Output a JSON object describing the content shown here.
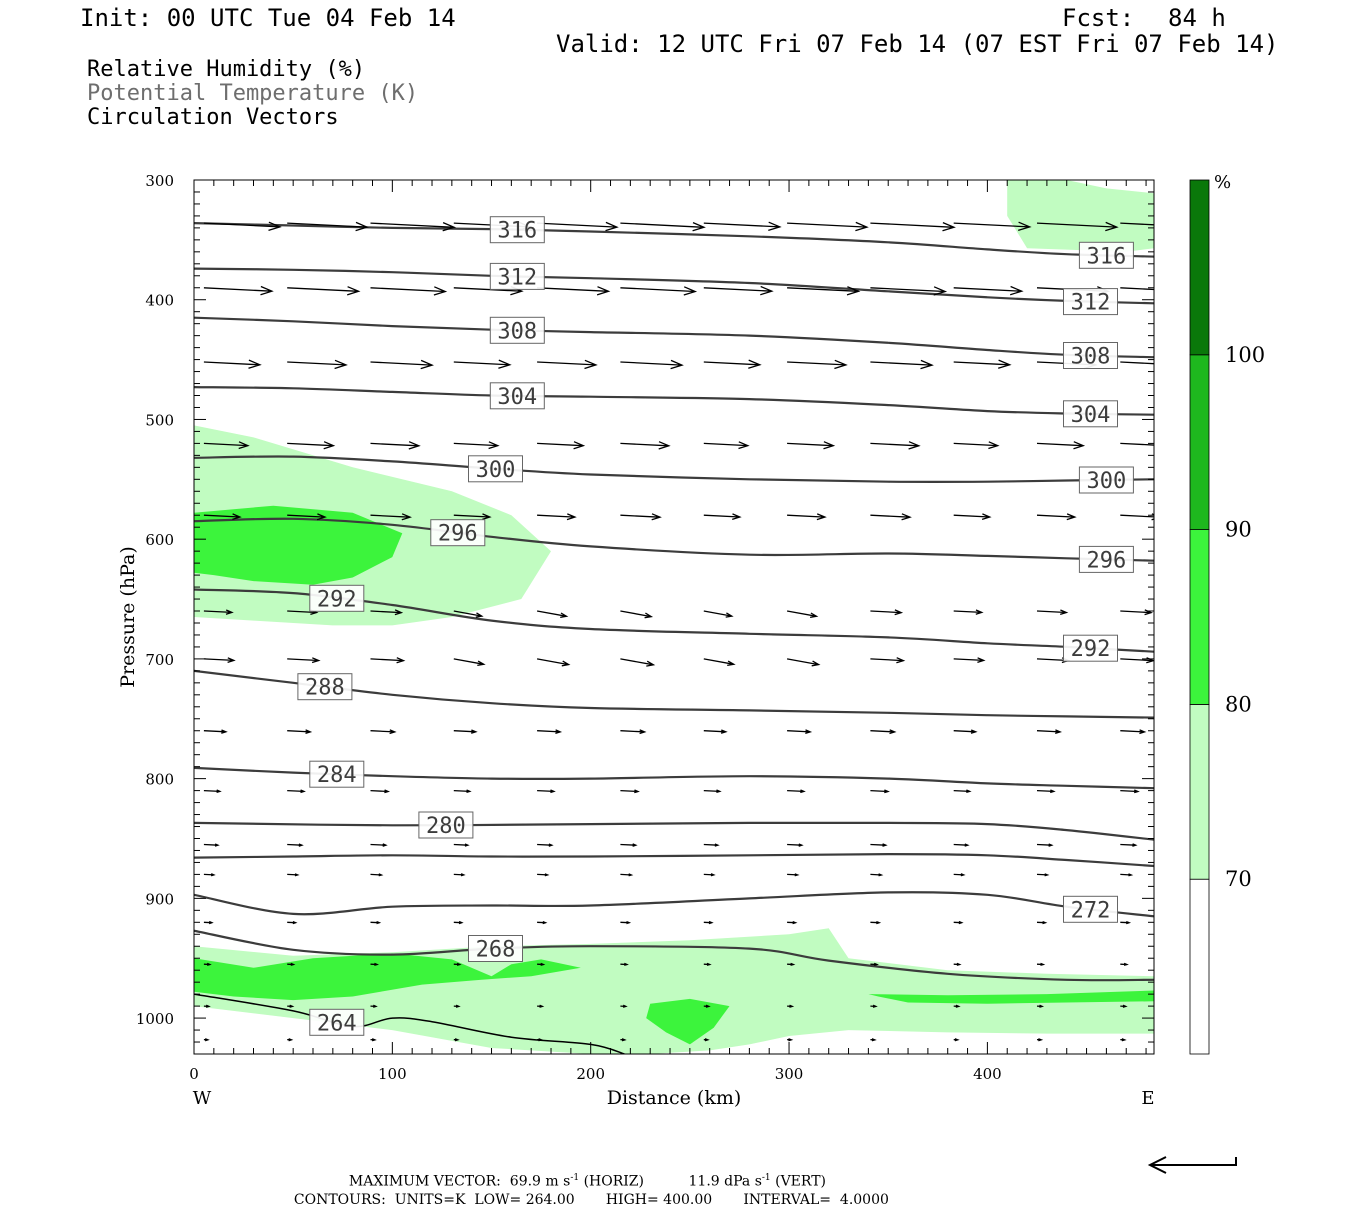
{
  "header": {
    "init": "Init: 00 UTC Tue 04 Feb 14",
    "fcst_label": "Fcst:",
    "fcst_value": "84 h",
    "valid": "Valid: 12 UTC Fri 07 Feb 14 (07 EST Fri 07 Feb 14)"
  },
  "legend": {
    "line1": "Relative Humidity (%)",
    "line2": "Potential Temperature (K)",
    "line3": "Circulation Vectors"
  },
  "footer": {
    "max_vector_label": "MAXIMUM VECTOR:",
    "max_vector_horiz": "69.9 m s",
    "horiz_exp": "-1",
    "horiz_tag": "(HORIZ)",
    "max_vector_vert": "11.9 dPa s",
    "vert_exp": "-1",
    "vert_tag": "(VERT)",
    "contours_label": "CONTOURS:",
    "units": "UNITS=K",
    "low": "LOW=",
    "low_value": "264.00",
    "high": "HIGH=",
    "high_value": "400.00",
    "interval": "INTERVAL=",
    "interval_value": "4.0000"
  },
  "colors": {
    "rh_70_80": "#c1fcc1",
    "rh_80_90": "#3cf43c",
    "rh_90_100": "#1eb81e",
    "rh_100": "#0a780a",
    "contour": "#3c3c3c",
    "vector": "#000000"
  },
  "chart_data": {
    "type": "cross-section",
    "xlabel": "Distance (km)",
    "ylabel": "Pressure (hPa)",
    "x_ticks": [
      0,
      100,
      200,
      300,
      400
    ],
    "y_ticks": [
      300,
      400,
      500,
      600,
      700,
      800,
      900,
      1000
    ],
    "xlim": [
      0,
      484
    ],
    "ylim": [
      300,
      1030
    ],
    "west_label": "W",
    "east_label": "E",
    "colorbar": {
      "unit": "%",
      "levels": [
        70,
        80,
        90,
        100
      ]
    },
    "isentropes": [
      {
        "theta": 264,
        "label": "264",
        "x": [
          0,
          50,
          80,
          100,
          120,
          160,
          200,
          217
        ],
        "p": [
          980,
          994,
          1007,
          1000,
          1003,
          1016,
          1022,
          1030
        ]
      },
      {
        "theta": 268,
        "label": "268",
        "x": [
          0,
          50,
          100,
          150,
          200,
          280,
          320,
          380,
          440,
          484
        ],
        "p": [
          927,
          943,
          947,
          942,
          940,
          942,
          952,
          963,
          968,
          968
        ]
      },
      {
        "theta": 272,
        "label": "272",
        "x": [
          0,
          50,
          100,
          150,
          200,
          280,
          350,
          400,
          440,
          484
        ],
        "p": [
          897,
          913,
          907,
          906,
          906,
          900,
          895,
          897,
          907,
          915
        ]
      },
      {
        "theta": 276,
        "label": "",
        "x": [
          0,
          50,
          100,
          150,
          200,
          280,
          350,
          400,
          440,
          484
        ],
        "p": [
          866,
          865,
          864,
          865,
          865,
          864,
          863,
          864,
          868,
          873
        ]
      },
      {
        "theta": 280,
        "label": "280",
        "x": [
          0,
          100,
          200,
          280,
          350,
          400,
          440,
          484
        ],
        "p": [
          837,
          839,
          838,
          837,
          837,
          838,
          843,
          851
        ]
      },
      {
        "theta": 284,
        "label": "284",
        "x": [
          0,
          50,
          100,
          150,
          200,
          280,
          350,
          400,
          440,
          484
        ],
        "p": [
          791,
          795,
          798,
          800,
          800,
          798,
          800,
          804,
          806,
          808
        ]
      },
      {
        "theta": 288,
        "label": "288",
        "x": [
          0,
          50,
          100,
          150,
          200,
          280,
          350,
          400,
          440,
          484
        ],
        "p": [
          710,
          720,
          730,
          737,
          741,
          743,
          745,
          747,
          748,
          749
        ]
      },
      {
        "theta": 292,
        "label": "292",
        "x": [
          0,
          50,
          100,
          150,
          200,
          280,
          350,
          400,
          440,
          484
        ],
        "p": [
          642,
          645,
          655,
          668,
          675,
          679,
          682,
          687,
          690,
          694
        ]
      },
      {
        "theta": 296,
        "label": "296",
        "x": [
          0,
          50,
          100,
          150,
          200,
          280,
          350,
          400,
          440,
          484
        ],
        "p": [
          585,
          583,
          588,
          598,
          606,
          613,
          612,
          614,
          616,
          618
        ]
      },
      {
        "theta": 300,
        "label": "300",
        "x": [
          0,
          50,
          100,
          150,
          200,
          280,
          350,
          400,
          440,
          484
        ],
        "p": [
          532,
          531,
          535,
          541,
          546,
          550,
          552,
          552,
          551,
          550
        ]
      },
      {
        "theta": 304,
        "label": "304",
        "x": [
          0,
          50,
          100,
          150,
          200,
          280,
          350,
          400,
          440,
          484
        ],
        "p": [
          473,
          474,
          477,
          480,
          481,
          483,
          488,
          493,
          495,
          496
        ]
      },
      {
        "theta": 308,
        "label": "308",
        "x": [
          0,
          50,
          100,
          150,
          200,
          280,
          350,
          400,
          440,
          484
        ],
        "p": [
          415,
          418,
          422,
          425,
          427,
          430,
          436,
          442,
          446,
          448
        ]
      },
      {
        "theta": 312,
        "label": "312",
        "x": [
          0,
          50,
          100,
          150,
          200,
          280,
          350,
          400,
          440,
          484
        ],
        "p": [
          374,
          375,
          377,
          380,
          382,
          386,
          393,
          398,
          401,
          403
        ]
      },
      {
        "theta": 316,
        "label": "316",
        "x": [
          0,
          50,
          100,
          150,
          200,
          280,
          350,
          400,
          440,
          484
        ],
        "p": [
          336,
          338,
          340,
          341,
          343,
          347,
          352,
          358,
          362,
          364
        ]
      }
    ],
    "rh_regions": [
      {
        "level": "70-80",
        "x": [
          0,
          30,
          80,
          130,
          160,
          180,
          165,
          130,
          100,
          70,
          30,
          0
        ],
        "p": [
          505,
          515,
          540,
          560,
          580,
          610,
          650,
          665,
          672,
          672,
          668,
          665
        ]
      },
      {
        "level": "80-90",
        "x": [
          0,
          40,
          80,
          105,
          100,
          80,
          60,
          30,
          10,
          0
        ],
        "p": [
          578,
          572,
          578,
          595,
          615,
          632,
          638,
          635,
          630,
          628
        ]
      },
      {
        "level": "70-80",
        "x": [
          410,
          440,
          460,
          484,
          484,
          470,
          420,
          410
        ],
        "p": [
          300,
          300,
          307,
          311,
          357,
          360,
          357,
          330
        ]
      },
      {
        "level": "70-80",
        "x": [
          0,
          50,
          100,
          150,
          200,
          250,
          300,
          320,
          330,
          380,
          430,
          484,
          484,
          430,
          380,
          330,
          300,
          280,
          260,
          230,
          200,
          150,
          100,
          50,
          0
        ],
        "p": [
          940,
          948,
          945,
          940,
          938,
          935,
          930,
          925,
          950,
          960,
          963,
          965,
          1013,
          1013,
          1012,
          1010,
          1015,
          1022,
          1027,
          1030,
          1030,
          1025,
          1010,
          1000,
          990
        ]
      },
      {
        "level": "80-90",
        "x": [
          0,
          30,
          60,
          100,
          130,
          150,
          160,
          175,
          195,
          170,
          145,
          115,
          80,
          50,
          20,
          0
        ],
        "p": [
          950,
          958,
          950,
          946,
          951,
          965,
          955,
          951,
          958,
          965,
          968,
          972,
          982,
          985,
          982,
          978
        ]
      },
      {
        "level": "80-90",
        "x": [
          230,
          250,
          270,
          262,
          250,
          238,
          228
        ],
        "p": [
          988,
          984,
          990,
          1008,
          1022,
          1012,
          1000
        ]
      },
      {
        "level": "80-90",
        "x": [
          340,
          380,
          430,
          484,
          484,
          440,
          400,
          360,
          345
        ],
        "p": [
          980,
          981,
          980,
          977,
          986,
          987,
          988,
          987,
          982
        ]
      }
    ]
  }
}
